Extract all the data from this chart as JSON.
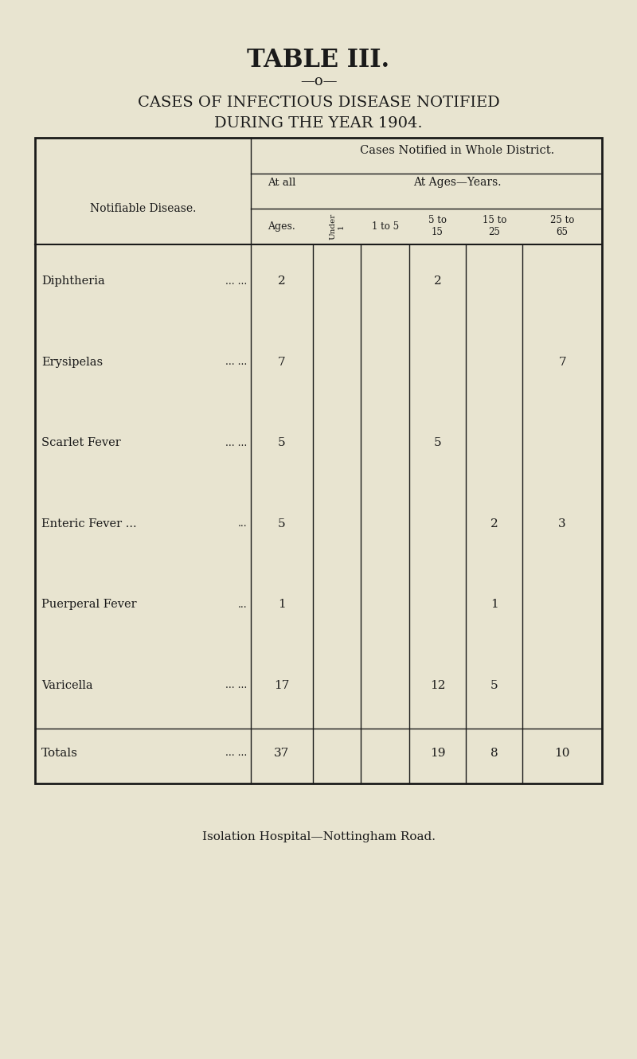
{
  "bg_color": "#e8e4d0",
  "text_color": "#1a1a1a",
  "title": "TABLE III.",
  "separator": "—o—",
  "subtitle_line1": "CASES OF INFECTIOUS DISEASE NOTIFIED",
  "subtitle_line2": "DURING THE YEAR 1904.",
  "col_header_main": "Cases Notified in Whole District.",
  "col_header_at_all": "At all",
  "col_header_ages_label": "Ages.",
  "col_header_ages_years": "At Ages—Years.",
  "col_headers_sub": [
    "Under\n1",
    "1 to 5",
    "5 to\n15",
    "15 to\n25",
    "25 to\n65"
  ],
  "row_label_header": "Notifiable Disease.",
  "diseases": [
    "Diphtheria",
    "Erysipelas",
    "Scarlet Fever",
    "Enteric Fever ...",
    "Puerperal Fever",
    "Varicella"
  ],
  "disease_dots": [
    "... ...",
    "... ...",
    "... ...",
    "...",
    "...",
    "... ..."
  ],
  "at_all_ages": [
    2,
    7,
    5,
    5,
    1,
    17
  ],
  "under_1": [
    "",
    "",
    "",
    "",
    "",
    ""
  ],
  "1_to_5": [
    "",
    "",
    "",
    "",
    "",
    ""
  ],
  "5_to_15": [
    2,
    "",
    5,
    "",
    "",
    12
  ],
  "15_to_25": [
    "",
    "",
    "",
    2,
    1,
    5
  ],
  "25_to_65": [
    "",
    7,
    "",
    3,
    "",
    ""
  ],
  "totals_label": "Totals",
  "totals_dots": "... ...",
  "totals_at_all": 37,
  "totals_under_1": "",
  "totals_1_to_5": "",
  "totals_5_to_15": 19,
  "totals_15_to_25": 8,
  "totals_25_to_65": 10,
  "footer": "Isolation Hospital—Nottingham Road."
}
